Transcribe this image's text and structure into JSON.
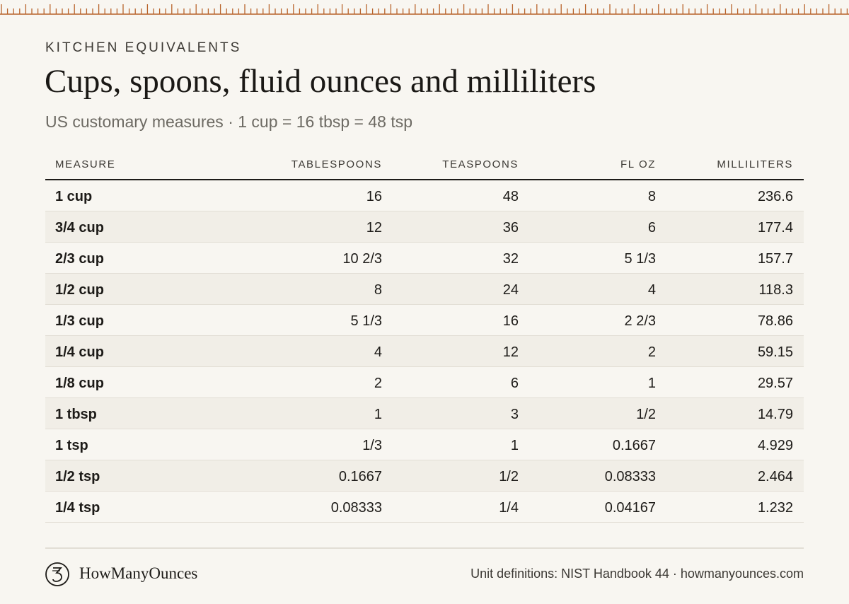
{
  "header": {
    "eyebrow": "KITCHEN EQUIVALENTS",
    "title": "Cups, spoons, fluid ounces and milliliters",
    "subtitle": "US customary measures · 1 cup = 16 tbsp = 48 tsp"
  },
  "table": {
    "columns": [
      "MEASURE",
      "TABLESPOONS",
      "TEASPOONS",
      "FL OZ",
      "MILLILITERS"
    ],
    "rows": [
      [
        "1 cup",
        "16",
        "48",
        "8",
        "236.6"
      ],
      [
        "3/4 cup",
        "12",
        "36",
        "6",
        "177.4"
      ],
      [
        "2/3 cup",
        "10 2/3",
        "32",
        "5 1/3",
        "157.7"
      ],
      [
        "1/2 cup",
        "8",
        "24",
        "4",
        "118.3"
      ],
      [
        "1/3 cup",
        "5 1/3",
        "16",
        "2 2/3",
        "78.86"
      ],
      [
        "1/4 cup",
        "4",
        "12",
        "2",
        "59.15"
      ],
      [
        "1/8 cup",
        "2",
        "6",
        "1",
        "29.57"
      ],
      [
        "1 tbsp",
        "1",
        "3",
        "1/2",
        "14.79"
      ],
      [
        "1 tsp",
        "1/3",
        "1",
        "0.1667",
        "4.929"
      ],
      [
        "1/2 tsp",
        "0.1667",
        "1/2",
        "0.08333",
        "2.464"
      ],
      [
        "1/4 tsp",
        "0.08333",
        "1/4",
        "0.04167",
        "1.232"
      ]
    ]
  },
  "footer": {
    "brand": "HowManyOunces",
    "source": "Unit definitions: NIST Handbook 44 · howmanyounces.com"
  }
}
